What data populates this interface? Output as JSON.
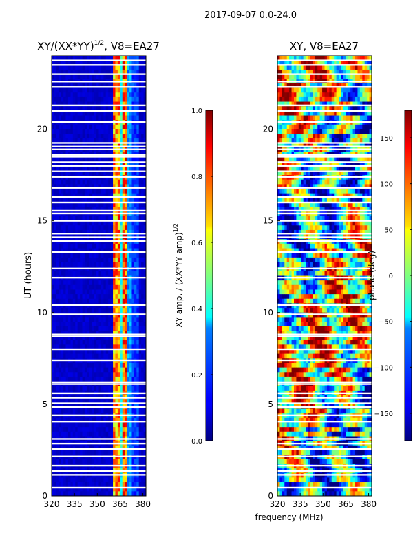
{
  "suptitle": "2017-09-07 0.0-24.0",
  "xlabel": "frequency (MHz)",
  "chart_data": [
    {
      "type": "heatmap",
      "title_main": "XY/(XX*YY)",
      "title_sup": "1/2",
      "title_rest": ", V8=EA27",
      "ylabel": "UT (hours)",
      "xlim": [
        320,
        382
      ],
      "ylim": [
        0,
        24
      ],
      "xticks": [
        320,
        335,
        350,
        365,
        380
      ],
      "yticks": [
        0,
        5,
        10,
        15,
        20
      ],
      "colorbar": {
        "label": "XY amp. / (XX*YY amp)",
        "label_sup": "1/2",
        "vmin": 0.0,
        "vmax": 1.0,
        "ticks": [
          "0.0",
          "0.2",
          "0.4",
          "0.6",
          "0.8",
          "1.0"
        ],
        "tick_values": [
          0.0,
          0.2,
          0.4,
          0.6,
          0.8,
          1.0
        ],
        "colormap": "jet"
      },
      "description": "mostly low amplitude (dark blue) with bright vertical features near 362-372 MHz"
    },
    {
      "type": "heatmap",
      "title": "XY, V8=EA27",
      "xlim": [
        320,
        382
      ],
      "ylim": [
        0,
        24
      ],
      "xticks": [
        320,
        335,
        350,
        365,
        380
      ],
      "yticks": [
        0,
        5,
        10,
        15,
        20
      ],
      "colorbar": {
        "label": "phase (deg)",
        "vmin": -180,
        "vmax": 180,
        "ticks": [
          "150",
          "100",
          "50",
          "0",
          "−50",
          "−100",
          "−150"
        ],
        "tick_values": [
          150,
          100,
          50,
          0,
          -50,
          -100,
          -150
        ],
        "colormap": "jet"
      },
      "description": "phase varies across full range with horizontal streaks"
    }
  ],
  "gaps_hours": [
    0.45,
    1.15,
    1.35,
    1.65,
    2.15,
    2.55,
    2.85,
    3.1,
    4.05,
    4.4,
    4.85,
    5.05,
    5.35,
    5.6,
    6.1,
    6.2,
    7.4,
    8.0,
    8.7,
    8.8,
    9.9,
    10.4,
    11.9,
    12.4,
    13.3,
    13.9,
    14.1,
    14.3,
    15.0,
    15.4,
    15.55,
    16.0,
    16.3,
    16.8,
    17.4,
    17.7,
    18.0,
    18.2,
    18.5,
    18.6,
    18.9,
    19.05,
    19.25,
    20.4,
    21.0,
    21.3,
    22.3,
    22.6,
    23.0,
    23.5,
    23.75
  ]
}
